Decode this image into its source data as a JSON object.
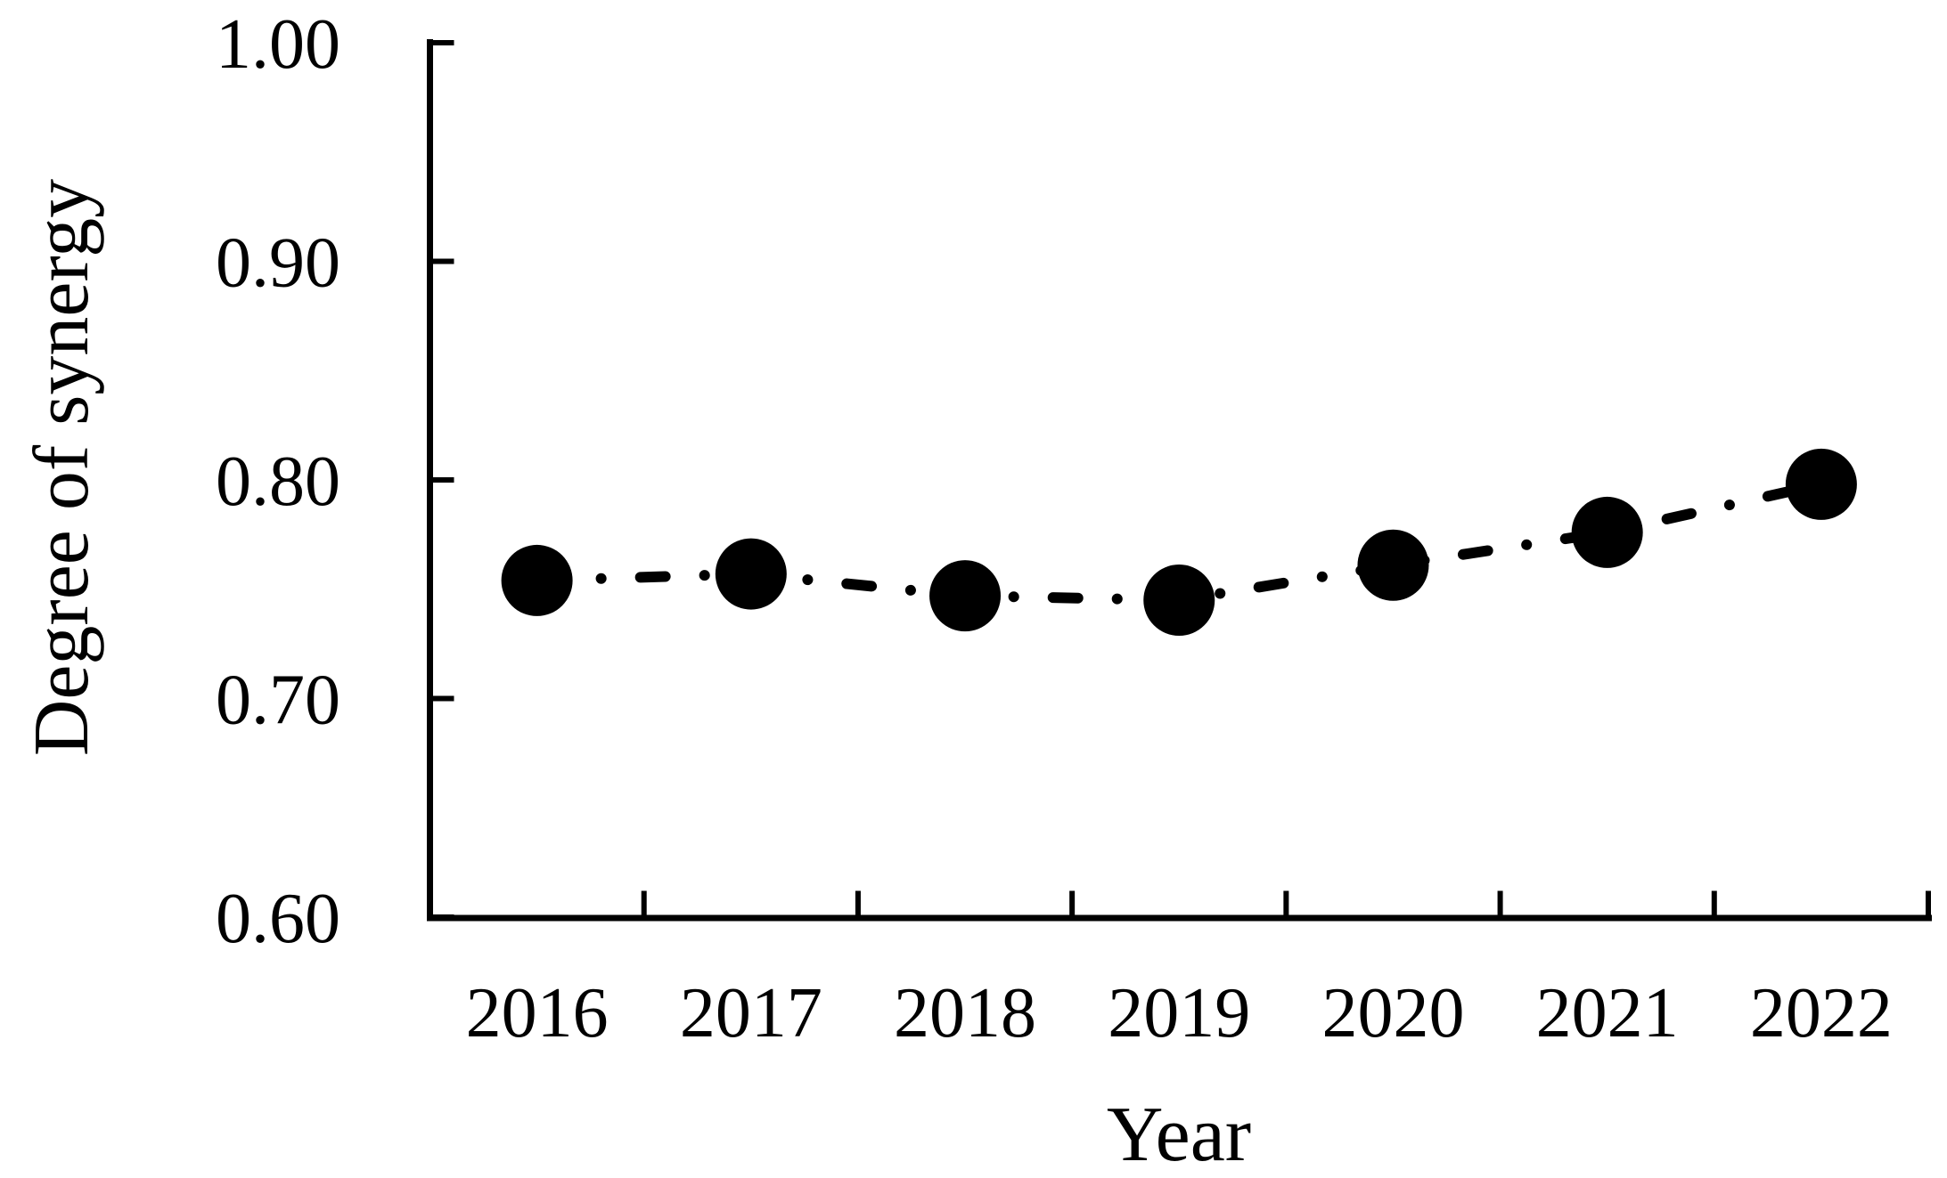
{
  "chart_data": {
    "type": "line",
    "title": "",
    "xlabel": "Year",
    "ylabel": "Degree of synergy",
    "categories": [
      "2016",
      "2017",
      "2018",
      "2019",
      "2020",
      "2021",
      "2022"
    ],
    "series": [
      {
        "name": "Degree of synergy",
        "values": [
          0.754,
          0.757,
          0.747,
          0.745,
          0.761,
          0.776,
          0.798
        ]
      }
    ],
    "ylim": [
      0.6,
      1.0
    ],
    "ytick_labels": [
      "0.60",
      "0.70",
      "0.80",
      "0.90",
      "1.00"
    ],
    "xtick_labels": [
      "2016",
      "2017",
      "2018",
      "2019",
      "2020",
      "2021",
      "2022"
    ],
    "grid": false,
    "legend": false,
    "marker": "filled-circle",
    "line_style": "dash-dot",
    "series_color": "#000000",
    "axis_color": "#000000",
    "background_color": "#ffffff"
  }
}
